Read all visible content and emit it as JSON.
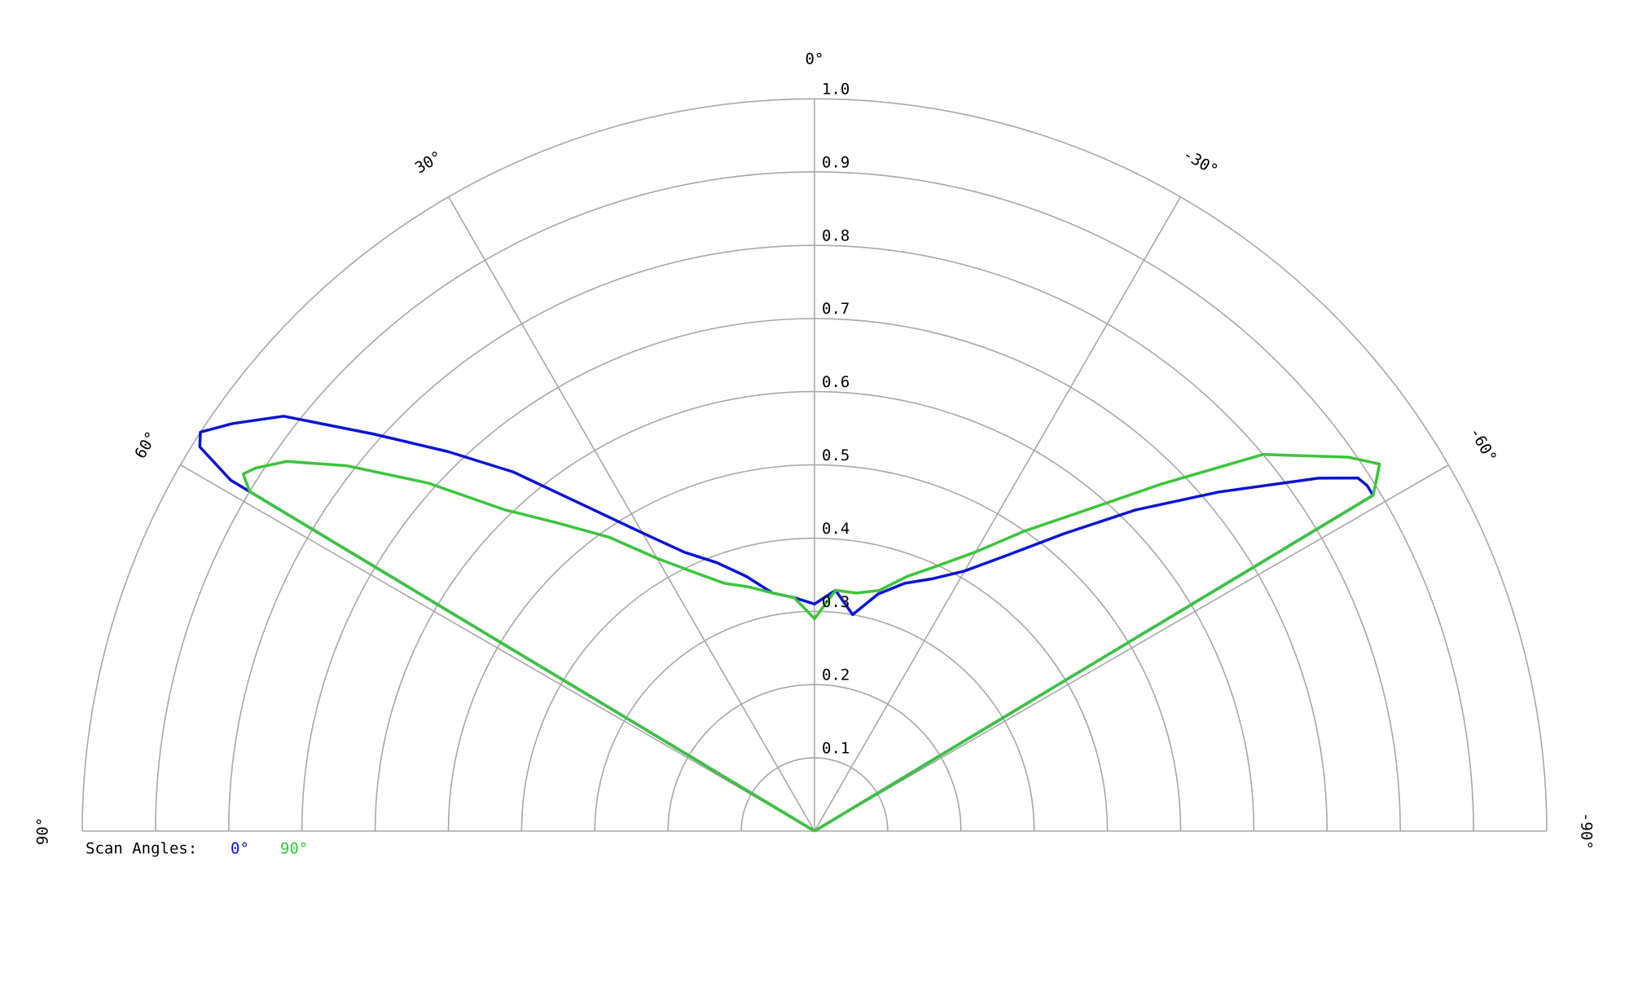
{
  "chart_data": {
    "type": "polar",
    "x": [
      90,
      60,
      59,
      58,
      57,
      55,
      52,
      48,
      44,
      40,
      35,
      30,
      25,
      20,
      15,
      10,
      5,
      0,
      -5,
      -10,
      -15,
      -20,
      -25,
      -30,
      -35,
      -40,
      -45,
      -50,
      -55,
      -57,
      -58,
      -59,
      -60,
      -90
    ],
    "series": [
      {
        "name": "0°",
        "color": "#0a14d2",
        "values": [
          0,
          0,
          0.93,
          0.99,
          1.0,
          0.97,
          0.92,
          0.81,
          0.72,
          0.64,
          0.54,
          0.47,
          0.42,
          0.39,
          0.36,
          0.33,
          0.32,
          0.31,
          0.33,
          0.3,
          0.335,
          0.36,
          0.38,
          0.41,
          0.46,
          0.53,
          0.62,
          0.72,
          0.84,
          0.885,
          0.89,
          0.89,
          0,
          0
        ]
      },
      {
        "name": "90°",
        "color": "#3cc43c",
        "values": [
          0,
          0,
          0.9,
          0.92,
          0.91,
          0.88,
          0.81,
          0.71,
          0.61,
          0.55,
          0.49,
          0.43,
          0.39,
          0.36,
          0.345,
          0.33,
          0.32,
          0.29,
          0.33,
          0.33,
          0.34,
          0.37,
          0.4,
          0.44,
          0.5,
          0.57,
          0.67,
          0.8,
          0.89,
          0.92,
          0.905,
          0.89,
          0,
          0
        ]
      }
    ],
    "xlim": [
      90,
      -90
    ],
    "xticks": [
      {
        "value": 90,
        "label": "90°"
      },
      {
        "value": 60,
        "label": "60°"
      },
      {
        "value": 30,
        "label": "30°"
      },
      {
        "value": 0,
        "label": "0°"
      },
      {
        "value": -30,
        "label": "-30°"
      },
      {
        "value": -60,
        "label": "-60°"
      },
      {
        "value": -90,
        "label": "-90°"
      }
    ],
    "ylim": [
      0,
      1
    ],
    "yticks": [
      0.1,
      0.2,
      0.3,
      0.4,
      0.5,
      0.6,
      0.7,
      0.8,
      0.9,
      {
        "value": 1,
        "label": "1.0"
      }
    ],
    "legend_title": "Scan Angles:",
    "grid": true
  }
}
